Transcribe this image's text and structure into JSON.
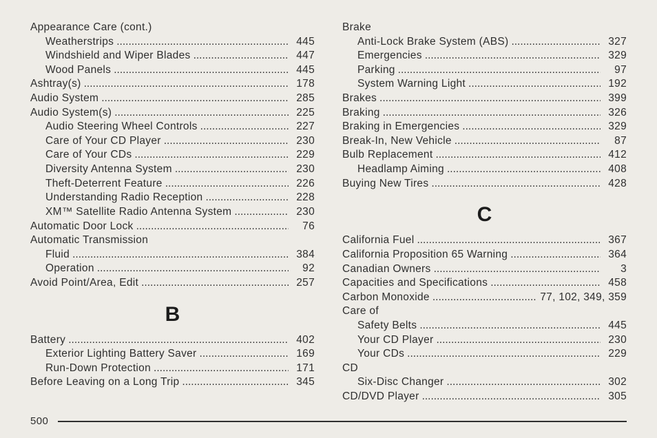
{
  "pageNumber": "500",
  "left": {
    "blocks": [
      {
        "type": "group",
        "label": "Appearance Care (cont.)",
        "items": [
          {
            "label": "Weatherstrips",
            "page": "445"
          },
          {
            "label": "Windshield and Wiper Blades",
            "page": "447"
          },
          {
            "label": "Wood Panels",
            "page": "445"
          }
        ]
      },
      {
        "type": "entry",
        "label": "Ashtray(s)",
        "page": "178"
      },
      {
        "type": "entry",
        "label": "Audio System",
        "page": "285"
      },
      {
        "type": "groupPaged",
        "label": "Audio System(s)",
        "page": "225",
        "items": [
          {
            "label": "Audio Steering Wheel Controls",
            "page": "227"
          },
          {
            "label": "Care of Your CD Player",
            "page": "230"
          },
          {
            "label": "Care of Your CDs",
            "page": "229"
          },
          {
            "label": "Diversity Antenna System",
            "page": "230"
          },
          {
            "label": "Theft-Deterrent Feature",
            "page": "226"
          },
          {
            "label": "Understanding Radio Reception",
            "page": "228"
          },
          {
            "label": "XM™ Satellite Radio Antenna System",
            "page": "230"
          }
        ]
      },
      {
        "type": "entry",
        "label": "Automatic Door Lock",
        "page": "76"
      },
      {
        "type": "group",
        "label": "Automatic Transmission",
        "items": [
          {
            "label": "Fluid",
            "page": "384"
          },
          {
            "label": "Operation",
            "page": "92"
          }
        ]
      },
      {
        "type": "entry",
        "label": "Avoid Point/Area, Edit",
        "page": "257"
      },
      {
        "type": "heading",
        "label": "B"
      },
      {
        "type": "groupPaged",
        "label": "Battery",
        "page": "402",
        "items": [
          {
            "label": "Exterior Lighting Battery Saver",
            "page": "169"
          },
          {
            "label": "Run-Down Protection",
            "page": "171"
          }
        ]
      },
      {
        "type": "entry",
        "label": "Before Leaving on a Long Trip",
        "page": "345"
      }
    ]
  },
  "right": {
    "blocks": [
      {
        "type": "group",
        "label": "Brake",
        "items": [
          {
            "label": "Anti-Lock Brake System (ABS)",
            "page": "327"
          },
          {
            "label": "Emergencies",
            "page": "329"
          },
          {
            "label": "Parking",
            "page": "97"
          },
          {
            "label": "System Warning Light",
            "page": "192"
          }
        ]
      },
      {
        "type": "entry",
        "label": "Brakes",
        "page": "399"
      },
      {
        "type": "entry",
        "label": "Braking",
        "page": "326"
      },
      {
        "type": "entry",
        "label": "Braking in Emergencies",
        "page": "329"
      },
      {
        "type": "entry",
        "label": "Break-In, New Vehicle",
        "page": "87"
      },
      {
        "type": "groupPaged",
        "label": "Bulb Replacement",
        "page": "412",
        "items": [
          {
            "label": "Headlamp Aiming",
            "page": "408"
          }
        ]
      },
      {
        "type": "entry",
        "label": "Buying New Tires",
        "page": "428"
      },
      {
        "type": "heading",
        "label": "C"
      },
      {
        "type": "entry",
        "label": "California Fuel",
        "page": "367"
      },
      {
        "type": "entry",
        "label": "California Proposition 65 Warning",
        "page": "364"
      },
      {
        "type": "entry",
        "label": "Canadian Owners",
        "page": "3"
      },
      {
        "type": "entry",
        "label": "Capacities and Specifications",
        "page": "458"
      },
      {
        "type": "entry",
        "label": "Carbon Monoxide",
        "page": "77, 102, 349, 359"
      },
      {
        "type": "group",
        "label": "Care of",
        "items": [
          {
            "label": "Safety Belts",
            "page": "445"
          },
          {
            "label": "Your CD Player",
            "page": "230"
          },
          {
            "label": "Your CDs",
            "page": "229"
          }
        ]
      },
      {
        "type": "group",
        "label": "CD",
        "items": [
          {
            "label": "Six-Disc Changer",
            "page": "302"
          }
        ]
      },
      {
        "type": "entry",
        "label": "CD/DVD Player",
        "page": "305"
      }
    ]
  }
}
